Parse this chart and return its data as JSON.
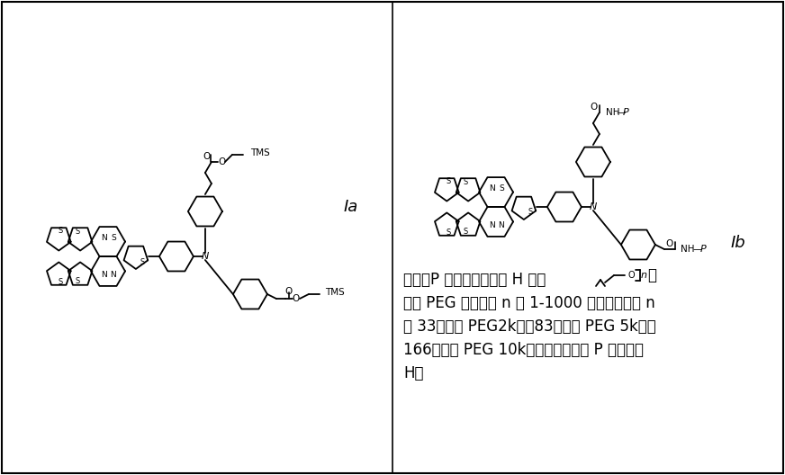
{
  "fig_width": 8.72,
  "fig_height": 5.28,
  "dpi": 100,
  "bg_color": "#ffffff",
  "label_Ia": "Ia",
  "label_Ib": "Ib",
  "text_line1": "其中，P 各自独立地表示 H 或由",
  "text_line2": "示的 PEG 链，其中 n 为 1-1000 的整数，例如 n",
  "text_line3": "为 33（对应 PEG2k）、83（对应 PEG 5k）、",
  "text_line4": "166（对应 PEG 10k），条件是两个 P 不同时为",
  "text_line5": "H，",
  "font_size_text": 12,
  "font_size_label": 13,
  "lw": 1.3
}
